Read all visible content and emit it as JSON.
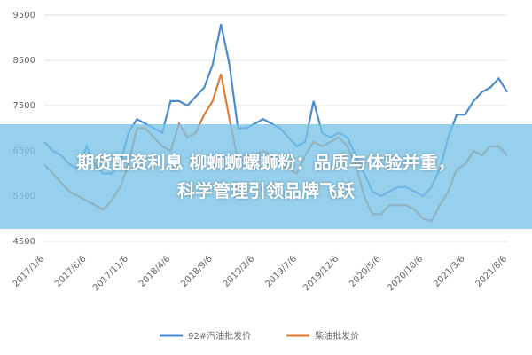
{
  "chart_data": {
    "type": "line",
    "categories": [
      "2017/1/6",
      null,
      null,
      null,
      null,
      "2017/6/6",
      null,
      null,
      null,
      null,
      "2017/11/6",
      null,
      null,
      null,
      null,
      "2018/4/6",
      null,
      null,
      null,
      null,
      "2018/9/6",
      null,
      null,
      null,
      null,
      "2019/2/6",
      null,
      null,
      null,
      null,
      "2019/7/6",
      null,
      null,
      null,
      null,
      "2019/12/6",
      null,
      null,
      null,
      null,
      "2020/5/6",
      null,
      null,
      null,
      null,
      "2020/10/6",
      null,
      null,
      null,
      null,
      "2021/3/6",
      null,
      null,
      null,
      null,
      "2021/8/6"
    ],
    "series": [
      {
        "name": "92#汽油批发价",
        "color": "#4a8bd0",
        "values": [
          6700,
          6500,
          6400,
          6200,
          6100,
          6600,
          6200,
          6000,
          6000,
          6200,
          6900,
          7200,
          7100,
          7000,
          6900,
          7600,
          7600,
          7500,
          7700,
          7900,
          8400,
          9300,
          8400,
          7000,
          7000,
          7100,
          7200,
          7100,
          7000,
          6800,
          6600,
          6700,
          7600,
          6900,
          6800,
          6900,
          6800,
          6400,
          6000,
          5600,
          5500,
          5600,
          5700,
          5700,
          5600,
          5500,
          5700,
          6100,
          6800,
          7300,
          7300,
          7600,
          7800,
          7900,
          8100,
          7800
        ]
      },
      {
        "name": "柴油批发价",
        "color": "#e07b39",
        "values": [
          6200,
          6000,
          5800,
          5600,
          5500,
          5400,
          5300,
          5200,
          5400,
          5700,
          6200,
          7000,
          7000,
          6800,
          6600,
          6500,
          7100,
          6800,
          6900,
          7300,
          7600,
          8200,
          7200,
          6300,
          6300,
          6400,
          6500,
          6400,
          6200,
          6100,
          6000,
          6400,
          6700,
          6600,
          6700,
          6800,
          6600,
          6200,
          5500,
          5100,
          5100,
          5300,
          5300,
          5300,
          5200,
          5000,
          4950,
          5300,
          5600,
          6100,
          6200,
          6500,
          6400,
          6600,
          6600,
          6400
        ]
      }
    ],
    "ylim": [
      4500,
      9500
    ],
    "yticks": [
      4500,
      5500,
      6500,
      7500,
      8500,
      9500
    ],
    "grid": true,
    "legend": "bottom",
    "overlay_text": [
      "期货配资利息 柳蛳蛳螺蛳粉：品质与体验并重，",
      "科学管理引领品牌飞跃"
    ]
  }
}
